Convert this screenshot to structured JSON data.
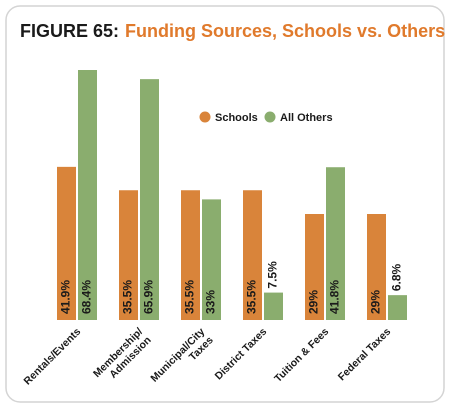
{
  "chart_data": {
    "type": "bar",
    "figure_label": "FIGURE 65:",
    "title": "Funding Sources, Schools vs. Others",
    "categories": [
      [
        "Rentals/Events"
      ],
      [
        "Membership/",
        "Admission"
      ],
      [
        "Municipal/City",
        "Taxes"
      ],
      [
        "District Taxes"
      ],
      [
        "Tuition & Fees"
      ],
      [
        "Federal Taxes"
      ]
    ],
    "series": [
      {
        "name": "Schools",
        "color": "#d9843a",
        "values": [
          41.9,
          35.5,
          35.5,
          35.5,
          29,
          29
        ],
        "value_labels": [
          "41.9%",
          "35.5%",
          "35.5%",
          "35.5%",
          "29%",
          "29%"
        ]
      },
      {
        "name": "All Others",
        "color": "#8aad6e",
        "values": [
          68.4,
          65.9,
          33,
          7.5,
          41.8,
          6.8
        ],
        "value_labels": [
          "68.4%",
          "65.9%",
          "33%",
          "7.5%",
          "41.8%",
          "6.8%"
        ]
      }
    ]
  }
}
